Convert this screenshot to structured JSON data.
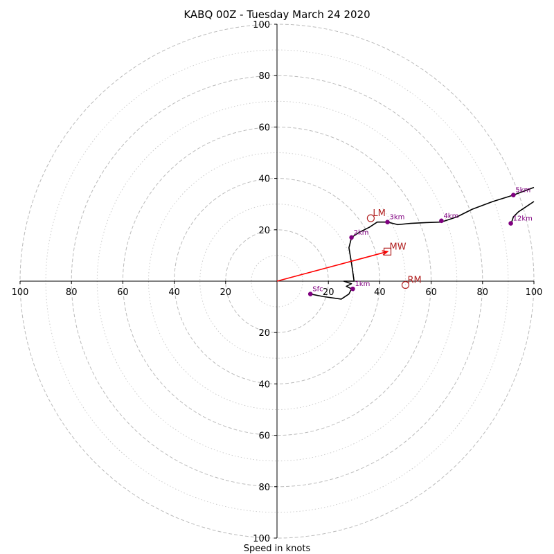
{
  "chart_data": {
    "type": "hodograph",
    "title": "KABQ 00Z - Tuesday March 24 2020",
    "xlabel": "Speed in knots",
    "axis_range": [
      -100,
      100
    ],
    "ring_major": [
      20,
      40,
      60,
      80,
      100
    ],
    "ring_minor": [
      10,
      30,
      50,
      70,
      90
    ],
    "x_ticks": [
      "100",
      "80",
      "60",
      "40",
      "20",
      "20",
      "40",
      "60",
      "80",
      "100"
    ],
    "x_tick_values": [
      -100,
      -80,
      -60,
      -40,
      -20,
      20,
      40,
      60,
      80,
      100
    ],
    "y_ticks": [
      "100",
      "80",
      "60",
      "40",
      "20",
      "20",
      "40",
      "60",
      "80",
      "100"
    ],
    "y_tick_values": [
      100,
      80,
      60,
      40,
      20,
      -20,
      -40,
      -60,
      -80,
      -100
    ],
    "grid": true,
    "colors": {
      "profile": "#000000",
      "height_marker": "#800080",
      "storm_motion": "#b22222",
      "mean_wind_vector": "#ff0000",
      "grid_ring": "#bbbbbb"
    },
    "wind_profile": [
      {
        "u": 13,
        "v": -5
      },
      {
        "u": 18,
        "v": -6
      },
      {
        "u": 25,
        "v": -7
      },
      {
        "u": 28,
        "v": -5
      },
      {
        "u": 29,
        "v": -3
      },
      {
        "u": 27,
        "v": -2
      },
      {
        "u": 29,
        "v": -1
      },
      {
        "u": 26,
        "v": 0
      },
      {
        "u": 30,
        "v": 0
      },
      {
        "u": 29,
        "v": 7
      },
      {
        "u": 28,
        "v": 13
      },
      {
        "u": 29,
        "v": 17
      },
      {
        "u": 32,
        "v": 19
      },
      {
        "u": 36,
        "v": 21
      },
      {
        "u": 39,
        "v": 23
      },
      {
        "u": 43,
        "v": 23
      },
      {
        "u": 47,
        "v": 22
      },
      {
        "u": 52,
        "v": 22.5
      },
      {
        "u": 58,
        "v": 22.8
      },
      {
        "u": 64,
        "v": 23
      },
      {
        "u": 70,
        "v": 25
      },
      {
        "u": 76,
        "v": 28
      },
      {
        "u": 84,
        "v": 31
      },
      {
        "u": 92,
        "v": 33.5
      },
      {
        "u": 96,
        "v": 35
      },
      {
        "u": 100,
        "v": 36.5
      }
    ],
    "upper_profile": [
      {
        "u": 91,
        "v": 22
      },
      {
        "u": 92,
        "v": 25
      },
      {
        "u": 94,
        "v": 27
      },
      {
        "u": 97,
        "v": 29
      },
      {
        "u": 100,
        "v": 31
      }
    ],
    "height_markers": [
      {
        "label": "Sfc",
        "u": 13,
        "v": -5
      },
      {
        "label": "1km",
        "u": 29.5,
        "v": -3
      },
      {
        "label": "2km",
        "u": 29,
        "v": 17
      },
      {
        "label": "3km",
        "u": 43,
        "v": 23
      },
      {
        "label": "4km",
        "u": 64,
        "v": 23.5
      },
      {
        "label": "5km",
        "u": 92,
        "v": 33.5
      },
      {
        "label": "12km",
        "u": 91,
        "v": 22.5
      }
    ],
    "storm_motions": [
      {
        "label": "LM",
        "marker": "circle",
        "u": 36.5,
        "v": 24.5
      },
      {
        "label": "RM",
        "marker": "circle",
        "u": 50,
        "v": -1.5
      },
      {
        "label": "MW",
        "marker": "square",
        "u": 43,
        "v": 11.5
      }
    ],
    "mean_wind_vector": {
      "u": 43,
      "v": 11.5
    }
  }
}
